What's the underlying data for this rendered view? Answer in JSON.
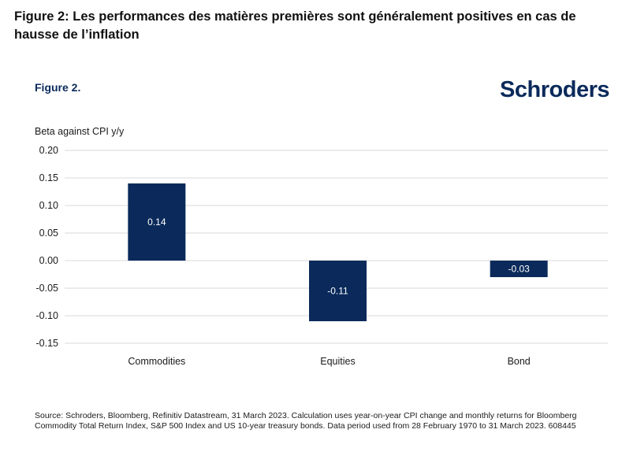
{
  "page_title": "Figure 2: Les performances des matières premières sont généralement positives en cas de hausse de l’inflation",
  "figure_label": "Figure 2.",
  "logo_text": "Schroders",
  "source_note": "Source: Schroders, Bloomberg, Refinitiv Datastream, 31 March 2023. Calculation uses year-on-year CPI change and monthly returns for Bloomberg Commodity Total Return Index, S&P 500 Index and US 10-year treasury bonds. Data period used from 28 February 1970 to 31 March 2023. 608445",
  "colors": {
    "bar": "#0b2a5b",
    "brand": "#0b2a5b",
    "grid": "#d9d9d9"
  },
  "chart_data": {
    "type": "bar",
    "title": "",
    "xlabel": "",
    "ylabel": "Beta against CPI y/y",
    "categories": [
      "Commodities",
      "Equities",
      "Bond"
    ],
    "values": [
      0.14,
      -0.11,
      -0.03
    ],
    "value_labels": [
      "0.14",
      "-0.11",
      "-0.03"
    ],
    "ylim": [
      -0.15,
      0.2
    ],
    "yticks": [
      0.2,
      0.15,
      0.1,
      0.05,
      0.0,
      -0.05,
      -0.1,
      -0.15
    ],
    "ytick_labels": [
      "0.20",
      "0.15",
      "0.10",
      "0.05",
      "0.00",
      "-0.05",
      "-0.10",
      "-0.15"
    ],
    "grid": true,
    "legend": "none"
  }
}
